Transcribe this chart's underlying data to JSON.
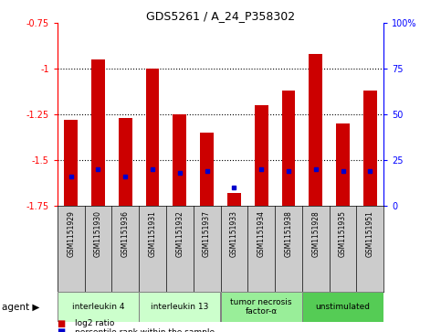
{
  "title": "GDS5261 / A_24_P358302",
  "samples": [
    "GSM1151929",
    "GSM1151930",
    "GSM1151936",
    "GSM1151931",
    "GSM1151932",
    "GSM1151937",
    "GSM1151933",
    "GSM1151934",
    "GSM1151938",
    "GSM1151928",
    "GSM1151935",
    "GSM1151951"
  ],
  "log2_ratio": [
    -1.28,
    -0.95,
    -1.27,
    -1.0,
    -1.25,
    -1.35,
    -1.68,
    -1.2,
    -1.12,
    -0.92,
    -1.3,
    -1.12
  ],
  "percentile_rank": [
    16,
    20,
    16,
    20,
    18,
    19,
    10,
    20,
    19,
    20,
    19,
    19
  ],
  "bar_color": "#cc0000",
  "blue_color": "#0000cc",
  "groups": [
    {
      "label": "interleukin 4",
      "start": 0,
      "end": 3,
      "color": "#ccffcc"
    },
    {
      "label": "interleukin 13",
      "start": 3,
      "end": 6,
      "color": "#ccffcc"
    },
    {
      "label": "tumor necrosis\nfactor-α",
      "start": 6,
      "end": 9,
      "color": "#99ee99"
    },
    {
      "label": "unstimulated",
      "start": 9,
      "end": 12,
      "color": "#55cc55"
    }
  ],
  "ylim_left": [
    -1.75,
    -0.75
  ],
  "ylim_right": [
    0,
    100
  ],
  "yticks_left": [
    -1.75,
    -1.5,
    -1.25,
    -1.0,
    -0.75
  ],
  "yticks_right": [
    0,
    25,
    50,
    75,
    100
  ],
  "ytick_labels_left": [
    "-1.75",
    "-1.5",
    "-1.25",
    "-1",
    "-0.75"
  ],
  "ytick_labels_right": [
    "0",
    "25",
    "50",
    "75",
    "100%"
  ],
  "gridlines": [
    -1.0,
    -1.25,
    -1.5
  ],
  "bar_width": 0.5,
  "agent_label": "agent",
  "legend_log2": "log2 ratio",
  "legend_pct": "percentile rank within the sample",
  "xtick_bg": "#cccccc",
  "plot_bg": "#ffffff",
  "border_color": "#000000"
}
